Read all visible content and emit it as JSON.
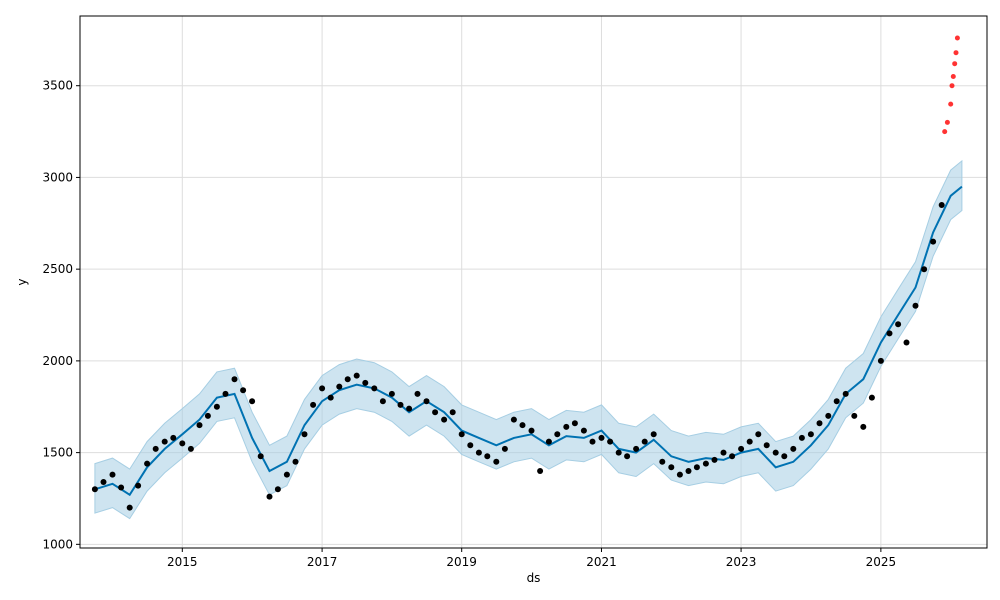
{
  "chart_data": {
    "type": "line",
    "title": "",
    "xlabel": "ds",
    "ylabel": "y",
    "grid": true,
    "legend": "none",
    "xlim": [
      "2013-07-15",
      "2026-07-10"
    ],
    "ylim": [
      980,
      3880
    ],
    "x_ticks": [
      "2015",
      "2017",
      "2019",
      "2021",
      "2023",
      "2025"
    ],
    "y_ticks": [
      1000,
      1500,
      2000,
      2500,
      3000,
      3500
    ],
    "colors": {
      "forecast_line": "#0072B2",
      "uncertainty_band": "#A6CEE3",
      "observed_points": "#000000",
      "recent_points": "#FF0000",
      "grid": "#DDDDDD"
    },
    "series": [
      {
        "kind": "forecast",
        "x": [
          "2013-10-01",
          "2014-01-01",
          "2014-04-01",
          "2014-07-01",
          "2014-10-01",
          "2015-01-01",
          "2015-04-01",
          "2015-07-01",
          "2015-10-01",
          "2016-01-01",
          "2016-04-01",
          "2016-07-01",
          "2016-10-01",
          "2017-01-01",
          "2017-04-01",
          "2017-07-01",
          "2017-10-01",
          "2018-01-01",
          "2018-04-01",
          "2018-07-01",
          "2018-10-01",
          "2019-01-01",
          "2019-04-01",
          "2019-07-01",
          "2019-10-01",
          "2020-01-01",
          "2020-04-01",
          "2020-07-01",
          "2020-10-01",
          "2021-01-01",
          "2021-04-01",
          "2021-07-01",
          "2021-10-01",
          "2022-01-01",
          "2022-04-01",
          "2022-07-01",
          "2022-10-01",
          "2023-01-01",
          "2023-04-01",
          "2023-07-01",
          "2023-10-01",
          "2024-01-01",
          "2024-04-01",
          "2024-07-01",
          "2024-10-01",
          "2025-01-01",
          "2025-04-01",
          "2025-07-01",
          "2025-10-01",
          "2026-01-01",
          "2026-03-01"
        ],
        "y": [
          1300,
          1330,
          1270,
          1420,
          1520,
          1600,
          1680,
          1800,
          1820,
          1580,
          1400,
          1450,
          1650,
          1780,
          1840,
          1870,
          1850,
          1800,
          1720,
          1780,
          1720,
          1620,
          1580,
          1540,
          1580,
          1600,
          1540,
          1590,
          1580,
          1620,
          1520,
          1500,
          1570,
          1480,
          1450,
          1470,
          1460,
          1500,
          1520,
          1420,
          1450,
          1540,
          1650,
          1820,
          1900,
          2100,
          2250,
          2400,
          2700,
          2900,
          2950
        ],
        "lower": [
          1170,
          1200,
          1140,
          1290,
          1390,
          1470,
          1550,
          1670,
          1690,
          1450,
          1270,
          1320,
          1520,
          1650,
          1710,
          1740,
          1720,
          1670,
          1590,
          1650,
          1590,
          1490,
          1450,
          1410,
          1450,
          1470,
          1410,
          1460,
          1450,
          1490,
          1390,
          1370,
          1440,
          1350,
          1320,
          1340,
          1330,
          1370,
          1390,
          1290,
          1320,
          1410,
          1520,
          1690,
          1770,
          1970,
          2120,
          2270,
          2570,
          2770,
          2820
        ],
        "upper": [
          1440,
          1470,
          1410,
          1560,
          1660,
          1740,
          1820,
          1940,
          1960,
          1720,
          1540,
          1590,
          1790,
          1920,
          1980,
          2010,
          1990,
          1940,
          1860,
          1920,
          1860,
          1760,
          1720,
          1680,
          1720,
          1740,
          1680,
          1730,
          1720,
          1760,
          1660,
          1640,
          1710,
          1620,
          1590,
          1610,
          1600,
          1640,
          1660,
          1560,
          1590,
          1680,
          1790,
          1960,
          2040,
          2240,
          2390,
          2540,
          2840,
          3040,
          3090
        ]
      },
      {
        "kind": "observed",
        "x": [
          "2013-10-01",
          "2013-11-15",
          "2014-01-01",
          "2014-02-15",
          "2014-04-01",
          "2014-05-15",
          "2014-07-01",
          "2014-08-15",
          "2014-10-01",
          "2014-11-15",
          "2015-01-01",
          "2015-02-15",
          "2015-04-01",
          "2015-05-15",
          "2015-07-01",
          "2015-08-15",
          "2015-10-01",
          "2015-11-15",
          "2016-01-01",
          "2016-02-15",
          "2016-04-01",
          "2016-05-15",
          "2016-07-01",
          "2016-08-15",
          "2016-10-01",
          "2016-11-15",
          "2017-01-01",
          "2017-02-15",
          "2017-04-01",
          "2017-05-15",
          "2017-07-01",
          "2017-08-15",
          "2017-10-01",
          "2017-11-15",
          "2018-01-01",
          "2018-02-15",
          "2018-04-01",
          "2018-05-15",
          "2018-07-01",
          "2018-08-15",
          "2018-10-01",
          "2018-11-15",
          "2019-01-01",
          "2019-02-15",
          "2019-04-01",
          "2019-05-15",
          "2019-07-01",
          "2019-08-15",
          "2019-10-01",
          "2019-11-15",
          "2020-01-01",
          "2020-02-15",
          "2020-04-01",
          "2020-05-15",
          "2020-07-01",
          "2020-08-15",
          "2020-10-01",
          "2020-11-15",
          "2021-01-01",
          "2021-02-15",
          "2021-04-01",
          "2021-05-15",
          "2021-07-01",
          "2021-08-15",
          "2021-10-01",
          "2021-11-15",
          "2022-01-01",
          "2022-02-15",
          "2022-04-01",
          "2022-05-15",
          "2022-07-01",
          "2022-08-15",
          "2022-10-01",
          "2022-11-15",
          "2023-01-01",
          "2023-02-15",
          "2023-04-01",
          "2023-05-15",
          "2023-07-01",
          "2023-08-15",
          "2023-10-01",
          "2023-11-15",
          "2024-01-01",
          "2024-02-15",
          "2024-04-01",
          "2024-05-15",
          "2024-07-01",
          "2024-08-15",
          "2024-10-01",
          "2024-11-15",
          "2025-01-01",
          "2025-02-15",
          "2025-04-01",
          "2025-05-15",
          "2025-07-01",
          "2025-08-15",
          "2025-10-01",
          "2025-11-15"
        ],
        "y": [
          1300,
          1340,
          1380,
          1310,
          1200,
          1320,
          1440,
          1520,
          1560,
          1580,
          1550,
          1520,
          1650,
          1700,
          1750,
          1820,
          1900,
          1840,
          1780,
          1480,
          1260,
          1300,
          1380,
          1450,
          1600,
          1760,
          1850,
          1800,
          1860,
          1900,
          1920,
          1880,
          1850,
          1780,
          1820,
          1760,
          1740,
          1820,
          1780,
          1720,
          1680,
          1720,
          1600,
          1540,
          1500,
          1480,
          1450,
          1520,
          1680,
          1650,
          1620,
          1400,
          1560,
          1600,
          1640,
          1660,
          1620,
          1560,
          1580,
          1560,
          1500,
          1480,
          1520,
          1560,
          1600,
          1450,
          1420,
          1380,
          1400,
          1420,
          1440,
          1460,
          1500,
          1480,
          1520,
          1560,
          1600,
          1540,
          1500,
          1480,
          1520,
          1580,
          1600,
          1660,
          1700,
          1780,
          1820,
          1700,
          1640,
          1800,
          2000,
          2150,
          2200,
          2100,
          2300,
          2500,
          2650,
          2850
        ]
      },
      {
        "kind": "recent",
        "x": [
          "2025-12-01",
          "2025-12-15",
          "2026-01-01",
          "2026-01-08",
          "2026-01-15",
          "2026-01-22",
          "2026-01-29",
          "2026-02-05"
        ],
        "y": [
          3250,
          3300,
          3400,
          3500,
          3550,
          3620,
          3680,
          3760
        ]
      }
    ]
  }
}
